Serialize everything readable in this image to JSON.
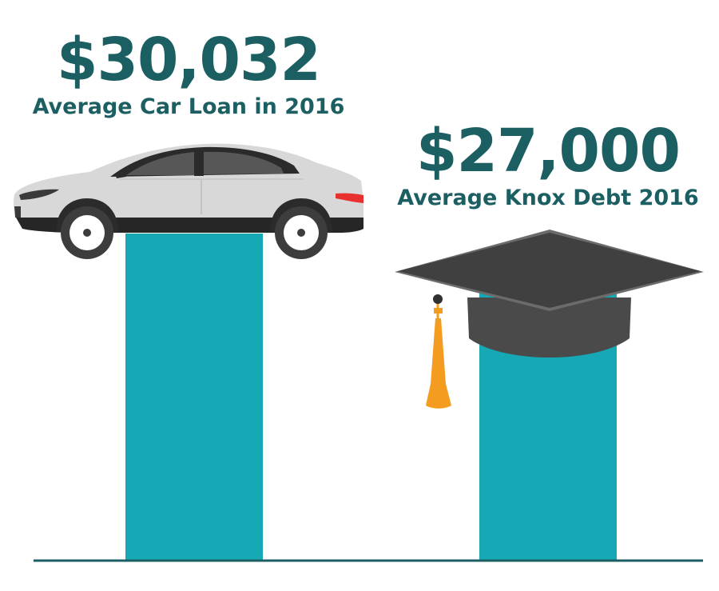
{
  "chart_data": {
    "type": "bar",
    "categories": [
      "Average Car Loan in 2016",
      "Average Knox Debt 2016"
    ],
    "values": [
      30032,
      27000
    ],
    "value_labels": [
      "$30,032",
      "$27,000"
    ],
    "title": "",
    "xlabel": "",
    "ylabel": "",
    "ylim": [
      0,
      30032
    ],
    "grid": false,
    "legend": "none"
  },
  "icons": [
    "car-icon",
    "graduation-cap-icon"
  ],
  "colors": {
    "bar": "#17a8b5",
    "text": "#1c5f63",
    "baseline": "#1c5f63",
    "car_body": "#d9d9d9",
    "car_dark": "#3a3a3a",
    "cap": "#404040",
    "tassel": "#f39c1f"
  }
}
